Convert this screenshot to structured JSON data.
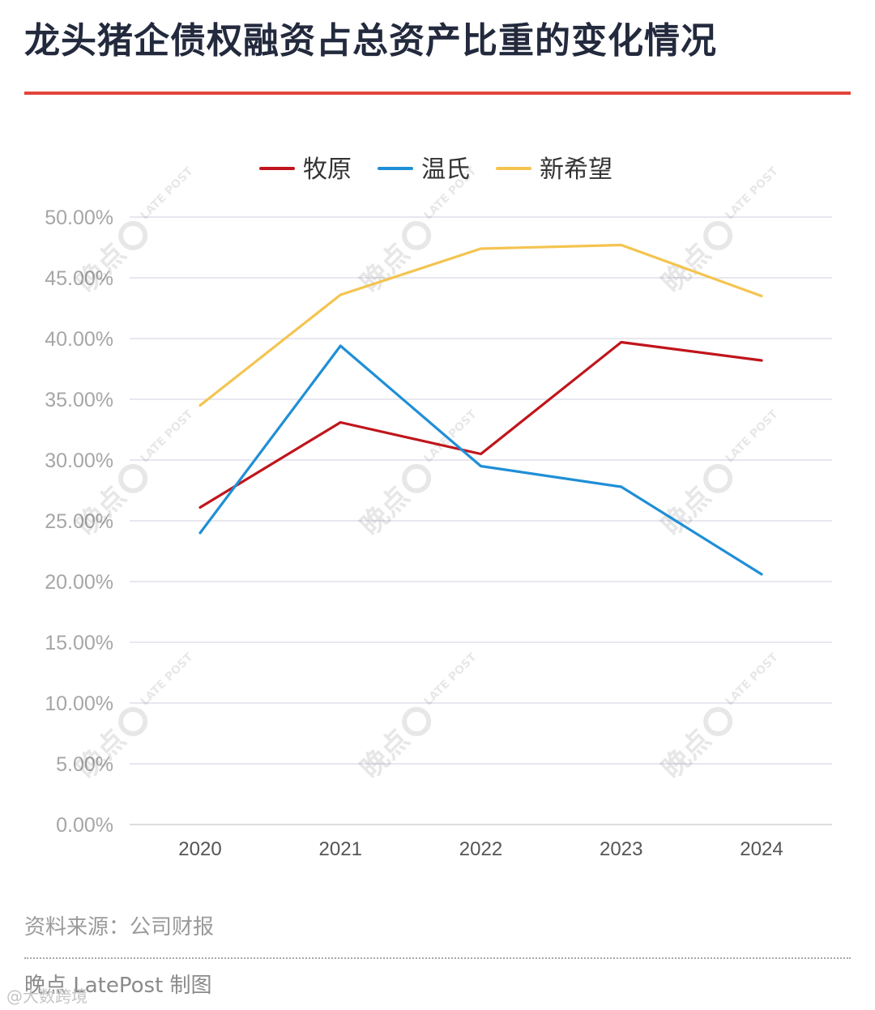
{
  "header": {
    "title": "龙头猪企债权融资占总资产比重的变化情况",
    "rule_color": "#e2453c"
  },
  "chart_data": {
    "type": "line",
    "x": [
      "2020",
      "2021",
      "2022",
      "2023",
      "2024"
    ],
    "series": [
      {
        "name": "牧原",
        "color": "#c0151c",
        "values": [
          26.1,
          33.1,
          30.5,
          39.7,
          38.2
        ]
      },
      {
        "name": "温氏",
        "color": "#1f8fd6",
        "values": [
          24.0,
          39.4,
          29.5,
          27.8,
          20.6
        ]
      },
      {
        "name": "新希望",
        "color": "#f4c450",
        "values": [
          34.5,
          43.6,
          47.4,
          47.7,
          43.5
        ]
      }
    ],
    "ylim": [
      0,
      50
    ],
    "yticks": [
      "0.00%",
      "5.00%",
      "10.00%",
      "15.00%",
      "20.00%",
      "25.00%",
      "30.00%",
      "35.00%",
      "40.00%",
      "45.00%",
      "50.00%"
    ],
    "grid": true,
    "legend": "top-center"
  },
  "watermark": {
    "name": "晚点",
    "brand": "LATE POST"
  },
  "footer": {
    "source": "资料来源：公司财报",
    "credit": "晚点 LatePost 制图",
    "weibo": "@大数跨境"
  }
}
